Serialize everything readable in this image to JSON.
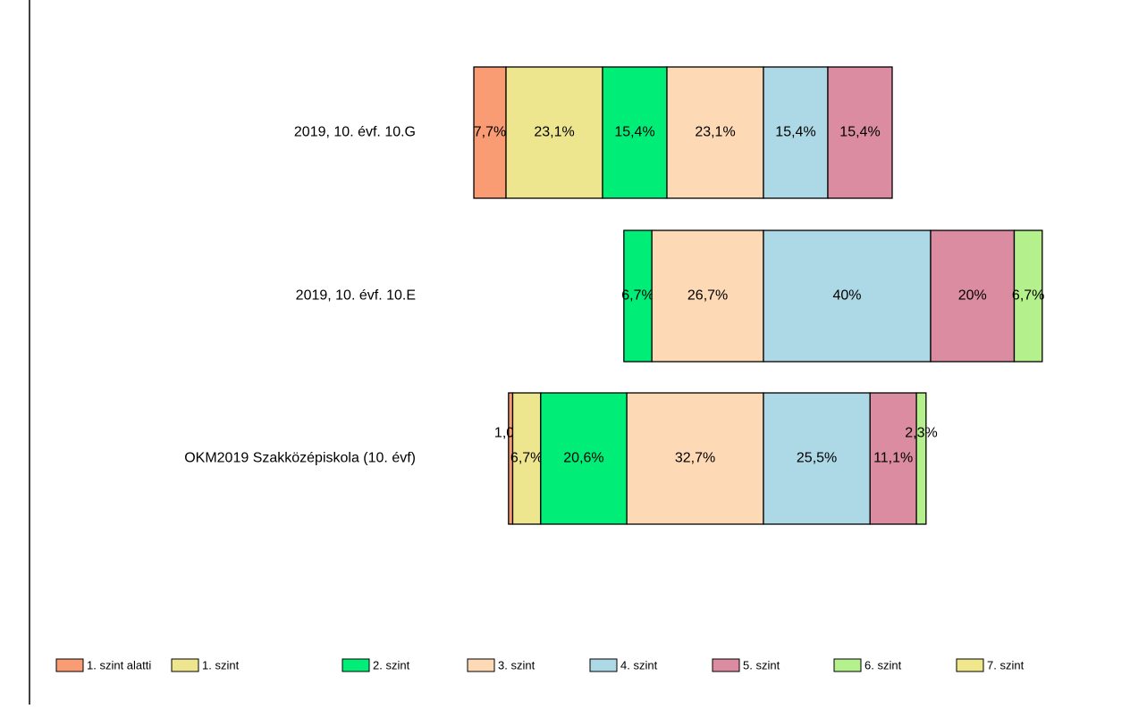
{
  "chart_data": {
    "type": "diverging_bar",
    "categories": [
      "2019, 10. évf. 10.G",
      "2019, 10. évf. 10.E",
      "OKM2019 Szakközépiskola (10. évf)"
    ],
    "series": [
      {
        "name": "1. szint alatti",
        "color": "#f99b73",
        "values": [
          7.7,
          null,
          1.0
        ],
        "value_labels": [
          "7,7%",
          null,
          "1,0%"
        ]
      },
      {
        "name": "1. szint",
        "color": "#eee58f",
        "values": [
          23.1,
          null,
          6.7
        ],
        "value_labels": [
          "23,1%",
          null,
          "6,7%"
        ]
      },
      {
        "name": "2. szint",
        "color": "#00ee77",
        "values": [
          15.4,
          6.7,
          20.6
        ],
        "value_labels": [
          "15,4%",
          "6,7%",
          "20,6%"
        ]
      },
      {
        "name": "3. szint",
        "color": "#fdd9b5",
        "values": [
          23.1,
          26.7,
          32.7
        ],
        "value_labels": [
          "23,1%",
          "26,7%",
          "32,7%"
        ]
      },
      {
        "name": "4. szint",
        "color": "#add8e6",
        "values": [
          15.4,
          40,
          25.5
        ],
        "value_labels": [
          "15,4%",
          "40%",
          "25,5%"
        ]
      },
      {
        "name": "5. szint",
        "color": "#db8ca0",
        "values": [
          15.4,
          20,
          11.1
        ],
        "value_labels": [
          "15,4%",
          "20%",
          "11,1%"
        ]
      },
      {
        "name": "6. szint",
        "color": "#b4f08c",
        "values": [
          null,
          6.7,
          2.3
        ],
        "value_labels": [
          null,
          "6,7%",
          "2,3%"
        ]
      },
      {
        "name": "7. szint",
        "color": "#f0e68c",
        "values": [
          null,
          null,
          null
        ],
        "value_labels": [
          null,
          null,
          null
        ]
      }
    ]
  }
}
